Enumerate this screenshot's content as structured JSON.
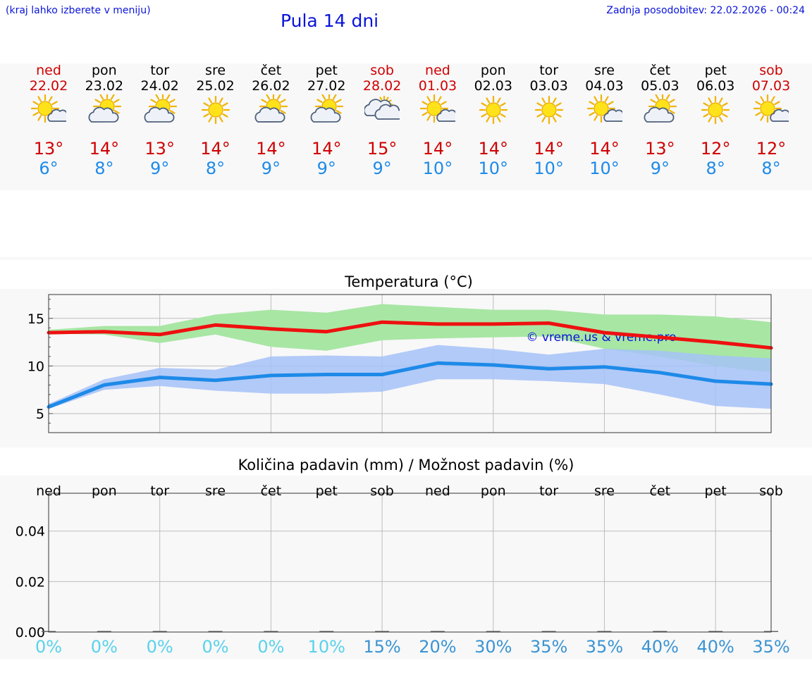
{
  "header": {
    "location_hint": "(kraj lahko izberete v meniju)",
    "title": "Pula 14 dni",
    "updated": "Zadnja posodobitev: 22.02.2026 - 00:24"
  },
  "days": [
    {
      "name": "ned",
      "date": "22.02",
      "weekend": true,
      "icon": "sun-small-cloud-icon",
      "hi": "13°",
      "lo": "6°"
    },
    {
      "name": "pon",
      "date": "23.02",
      "weekend": false,
      "icon": "partly-cloudy-icon",
      "hi": "14°",
      "lo": "8°"
    },
    {
      "name": "tor",
      "date": "24.02",
      "weekend": false,
      "icon": "partly-cloudy-icon",
      "hi": "13°",
      "lo": "9°"
    },
    {
      "name": "sre",
      "date": "25.02",
      "weekend": false,
      "icon": "sun-icon",
      "hi": "14°",
      "lo": "8°"
    },
    {
      "name": "čet",
      "date": "26.02",
      "weekend": false,
      "icon": "partly-cloudy-icon",
      "hi": "14°",
      "lo": "9°"
    },
    {
      "name": "pet",
      "date": "27.02",
      "weekend": false,
      "icon": "partly-cloudy-icon",
      "hi": "14°",
      "lo": "9°"
    },
    {
      "name": "sob",
      "date": "28.02",
      "weekend": true,
      "icon": "cloudy-icon",
      "hi": "15°",
      "lo": "9°"
    },
    {
      "name": "ned",
      "date": "01.03",
      "weekend": true,
      "icon": "sun-small-cloud-icon",
      "hi": "14°",
      "lo": "10°"
    },
    {
      "name": "pon",
      "date": "02.03",
      "weekend": false,
      "icon": "sun-icon",
      "hi": "14°",
      "lo": "10°"
    },
    {
      "name": "tor",
      "date": "03.03",
      "weekend": false,
      "icon": "sun-icon",
      "hi": "14°",
      "lo": "10°"
    },
    {
      "name": "sre",
      "date": "04.03",
      "weekend": false,
      "icon": "sun-small-cloud-icon",
      "hi": "14°",
      "lo": "10°"
    },
    {
      "name": "čet",
      "date": "05.03",
      "weekend": false,
      "icon": "partly-cloudy-icon",
      "hi": "13°",
      "lo": "9°"
    },
    {
      "name": "pet",
      "date": "06.03",
      "weekend": false,
      "icon": "sun-icon",
      "hi": "12°",
      "lo": "8°"
    },
    {
      "name": "sob",
      "date": "07.03",
      "weekend": true,
      "icon": "sun-small-cloud-icon",
      "hi": "12°",
      "lo": "8°"
    }
  ],
  "colors": {
    "title_blue": "#0a14d8",
    "hi_red": "#d00000",
    "lo_blue": "#1e8ae8",
    "max_line": "#ee1010",
    "min_line": "#1e8ae8",
    "max_band": "#a8e6a4",
    "min_band": "#a6c2f8",
    "overlap_band": "#80c8a8",
    "pct_light": "#58d2ec",
    "pct_dark": "#3a94d4"
  },
  "chart_data": [
    {
      "type": "line",
      "title": "Temperatura (°C)",
      "watermark": "© vreme.us & vreme.pro",
      "x": [
        0,
        1,
        2,
        3,
        4,
        5,
        6,
        7,
        8,
        9,
        10,
        11,
        12,
        13
      ],
      "ylim": [
        3,
        17.5
      ],
      "yticks": [
        5,
        10,
        15
      ],
      "grid": true,
      "series": [
        {
          "name": "max",
          "values": [
            13.5,
            13.6,
            13.3,
            14.3,
            13.9,
            13.6,
            14.6,
            14.4,
            14.4,
            14.5,
            13.5,
            13.0,
            12.5,
            11.9
          ],
          "band_low": [
            13.4,
            13.3,
            12.4,
            13.3,
            12.0,
            11.6,
            12.7,
            12.9,
            13.0,
            13.1,
            11.8,
            11.0,
            10.0,
            9.3
          ],
          "band_high": [
            13.8,
            14.2,
            14.2,
            15.4,
            15.9,
            15.6,
            16.5,
            16.2,
            15.9,
            15.9,
            15.4,
            15.4,
            15.2,
            14.6
          ]
        },
        {
          "name": "min",
          "values": [
            5.7,
            8.0,
            8.8,
            8.5,
            9.0,
            9.1,
            9.1,
            10.3,
            10.1,
            9.7,
            9.9,
            9.3,
            8.4,
            8.1
          ],
          "band_low": [
            5.5,
            7.5,
            7.9,
            7.4,
            7.1,
            7.1,
            7.3,
            8.6,
            8.6,
            8.4,
            8.1,
            7.0,
            5.8,
            5.5
          ],
          "band_high": [
            6.0,
            8.6,
            9.8,
            9.6,
            11.0,
            11.1,
            11.0,
            12.2,
            11.8,
            11.2,
            11.8,
            11.6,
            11.1,
            10.8
          ]
        }
      ]
    },
    {
      "type": "bar",
      "title": "Količina padavin (mm) / Možnost padavin (%)",
      "categories": [
        "ned",
        "pon",
        "tor",
        "sre",
        "čet",
        "pet",
        "sob",
        "ned",
        "pon",
        "tor",
        "sre",
        "čet",
        "pet",
        "sob"
      ],
      "values": [
        0,
        0,
        0,
        0,
        0,
        0,
        0,
        0,
        0,
        0,
        0,
        0,
        0,
        0
      ],
      "ylim": [
        0,
        0.055
      ],
      "yticks": [
        "0.00",
        "0.02",
        "0.04"
      ],
      "ytick_values": [
        0,
        0.02,
        0.04
      ],
      "probability": [
        "0%",
        "0%",
        "0%",
        "0%",
        "0%",
        "10%",
        "15%",
        "20%",
        "30%",
        "35%",
        "35%",
        "40%",
        "40%",
        "35%"
      ],
      "probability_values": [
        0,
        0,
        0,
        0,
        0,
        10,
        15,
        20,
        30,
        35,
        35,
        40,
        40,
        35
      ]
    }
  ]
}
